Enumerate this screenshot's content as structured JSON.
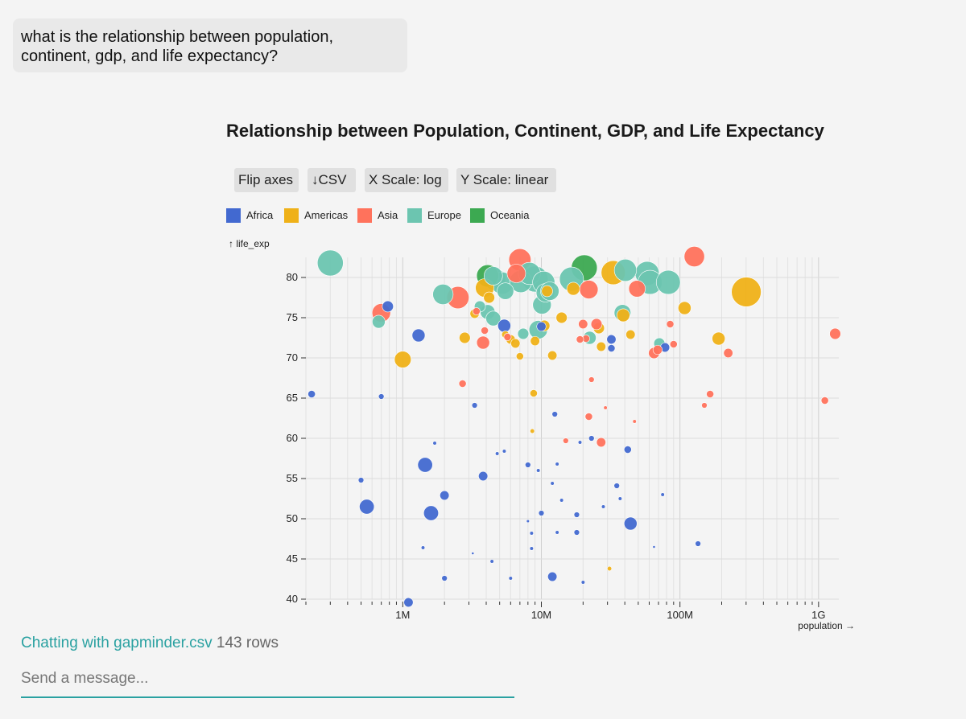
{
  "chat": {
    "user_message": "what is the relationship between population, continent, gdp, and life expectancy?"
  },
  "toolbar": {
    "flip_axes_label": "Flip axes",
    "csv_label": "↓CSV",
    "x_scale_label": "X Scale: log",
    "y_scale_label": "Y Scale: linear"
  },
  "footer": {
    "status_prefix": "Chatting with",
    "file_name": "gapminder.csv",
    "rows_label": "143 rows",
    "message_placeholder": "Send a message..."
  },
  "chart_data": {
    "type": "scatter",
    "title": "Relationship between Population, Continent, GDP, and Life Expectancy",
    "xlabel": "population →",
    "ylabel": "↑ life_exp",
    "x_scale": "log",
    "y_scale": "linear",
    "xlim": [
      200000,
      1400000000
    ],
    "ylim": [
      40,
      82.5
    ],
    "x_ticks": [
      1000000,
      10000000,
      100000000,
      1000000000
    ],
    "x_tick_labels": [
      "1M",
      "10M",
      "100M",
      "1G"
    ],
    "y_ticks": [
      40,
      45,
      50,
      55,
      60,
      65,
      70,
      75,
      80
    ],
    "y_tick_labels": [
      "40",
      "45",
      "50",
      "55",
      "60",
      "65",
      "70",
      "75",
      "80"
    ],
    "grid": true,
    "size_encoding": "gdp",
    "legend_position": "top-left",
    "series": [
      {
        "name": "Africa",
        "color": "#4269d0",
        "points": [
          [
            220000,
            65.5,
            2
          ],
          [
            700000,
            65.2,
            1.5
          ],
          [
            780000,
            76.4,
            3
          ],
          [
            1300000,
            72.8,
            3.5
          ],
          [
            1100000,
            39.6,
            2.5
          ],
          [
            500000,
            54.8,
            1.5
          ],
          [
            550000,
            51.5,
            4
          ],
          [
            1450000,
            56.7,
            4
          ],
          [
            1600000,
            50.7,
            4
          ],
          [
            2000000,
            52.9,
            2.5
          ],
          [
            1700000,
            59.4,
            1
          ],
          [
            1400000,
            46.4,
            1
          ],
          [
            2000000,
            42.6,
            1.5
          ],
          [
            3300000,
            64.1,
            1.5
          ],
          [
            3800000,
            55.3,
            2.5
          ],
          [
            4800000,
            58.1,
            1
          ],
          [
            5400000,
            58.4,
            1
          ],
          [
            4400000,
            44.7,
            1
          ],
          [
            6000000,
            42.6,
            1
          ],
          [
            8000000,
            56.7,
            1.5
          ],
          [
            9500000,
            56.0,
            1
          ],
          [
            12000000,
            54.4,
            1
          ],
          [
            12500000,
            63.0,
            1.5
          ],
          [
            13000000,
            56.8,
            1
          ],
          [
            14000000,
            52.3,
            1
          ],
          [
            10000000,
            50.7,
            1.5
          ],
          [
            8500000,
            48.2,
            1
          ],
          [
            8500000,
            46.3,
            1
          ],
          [
            8000000,
            49.7,
            0.8
          ],
          [
            13000000,
            48.3,
            1
          ],
          [
            12000000,
            42.8,
            2.5
          ],
          [
            18000000,
            50.5,
            1.5
          ],
          [
            18000000,
            48.3,
            1.5
          ],
          [
            19000000,
            59.5,
            1
          ],
          [
            20000000,
            42.1,
            1
          ],
          [
            23000000,
            60.0,
            1.5
          ],
          [
            28000000,
            51.5,
            1
          ],
          [
            32000000,
            72.3,
            2.5
          ],
          [
            32000000,
            71.2,
            2
          ],
          [
            35000000,
            54.1,
            1.5
          ],
          [
            37000000,
            52.5,
            1
          ],
          [
            42000000,
            58.6,
            2
          ],
          [
            44000000,
            49.4,
            3.5
          ],
          [
            65000000,
            46.5,
            0.7
          ],
          [
            75000000,
            53.0,
            1
          ],
          [
            78000000,
            71.3,
            2.5
          ],
          [
            135000000,
            46.9,
            1.5
          ],
          [
            3200000,
            45.7,
            0.7
          ],
          [
            5400000,
            74.0,
            3.5
          ],
          [
            10000000,
            73.9,
            2.5
          ]
        ]
      },
      {
        "name": "Americas",
        "color": "#efb118",
        "points": [
          [
            1000000,
            69.8,
            4.5
          ],
          [
            2800000,
            72.5,
            3
          ],
          [
            3300000,
            75.5,
            2.5
          ],
          [
            3900000,
            78.7,
            5
          ],
          [
            4200000,
            77.5,
            3
          ],
          [
            5500000,
            72.9,
            2
          ],
          [
            6000000,
            72.3,
            2.5
          ],
          [
            6500000,
            71.8,
            2.5
          ],
          [
            7000000,
            70.2,
            2
          ],
          [
            8600000,
            60.9,
            1.2
          ],
          [
            8800000,
            65.6,
            2
          ],
          [
            9000000,
            72.1,
            2.5
          ],
          [
            10500000,
            74.0,
            3
          ],
          [
            11000000,
            78.3,
            3
          ],
          [
            12000000,
            70.3,
            2.5
          ],
          [
            14000000,
            75.0,
            3
          ],
          [
            17000000,
            78.6,
            3.5
          ],
          [
            26000000,
            73.7,
            3
          ],
          [
            27000000,
            71.4,
            2.5
          ],
          [
            31000000,
            43.8,
            1.2
          ],
          [
            33000000,
            80.6,
            6.5
          ],
          [
            39000000,
            75.3,
            3.5
          ],
          [
            44000000,
            72.9,
            2.5
          ],
          [
            108000000,
            76.2,
            3.5
          ],
          [
            190000000,
            72.4,
            3.5
          ],
          [
            301000000,
            78.2,
            8
          ]
        ]
      },
      {
        "name": "Asia",
        "color": "#ff725c",
        "points": [
          [
            700000,
            75.6,
            5
          ],
          [
            2500000,
            77.5,
            6
          ],
          [
            2700000,
            66.8,
            2
          ],
          [
            3400000,
            75.8,
            2
          ],
          [
            3900000,
            73.4,
            2
          ],
          [
            3800000,
            71.9,
            3.5
          ],
          [
            5700000,
            72.6,
            2
          ],
          [
            7000000,
            82.2,
            6
          ],
          [
            6600000,
            80.5,
            5
          ],
          [
            15000000,
            59.7,
            1.5
          ],
          [
            21000000,
            72.4,
            2
          ],
          [
            22000000,
            62.7,
            2
          ],
          [
            22000000,
            78.5,
            5
          ],
          [
            23000000,
            67.3,
            1.5
          ],
          [
            25000000,
            74.2,
            3
          ],
          [
            27000000,
            59.5,
            2.5
          ],
          [
            29000000,
            63.8,
            1
          ],
          [
            47000000,
            62.1,
            1
          ],
          [
            49000000,
            78.6,
            4.5
          ],
          [
            65000000,
            70.6,
            3
          ],
          [
            69000000,
            71.0,
            2.5
          ],
          [
            85000000,
            74.2,
            2
          ],
          [
            90000000,
            71.7,
            2
          ],
          [
            127000000,
            82.6,
            5.5
          ],
          [
            150000000,
            64.1,
            1.5
          ],
          [
            165000000,
            65.5,
            2
          ],
          [
            223000000,
            70.6,
            2.5
          ],
          [
            1110000000,
            64.7,
            2
          ],
          [
            1318000000,
            73.0,
            3
          ],
          [
            20000000,
            74.2,
            2.5
          ],
          [
            19000000,
            72.3,
            2
          ]
        ]
      },
      {
        "name": "Europe",
        "color": "#6cc5b0",
        "points": [
          [
            300000,
            81.8,
            7
          ],
          [
            670000,
            74.5,
            3.5
          ],
          [
            1950000,
            77.9,
            5.5
          ],
          [
            3600000,
            76.4,
            3
          ],
          [
            4100000,
            75.7,
            4
          ],
          [
            4500000,
            74.9,
            4
          ],
          [
            4600000,
            79.8,
            6
          ],
          [
            4500000,
            80.2,
            5
          ],
          [
            5200000,
            79.3,
            6
          ],
          [
            5500000,
            78.3,
            4.5
          ],
          [
            7100000,
            79.5,
            6
          ],
          [
            7400000,
            73.0,
            3
          ],
          [
            8200000,
            80.5,
            6
          ],
          [
            9000000,
            79.8,
            7
          ],
          [
            9500000,
            73.5,
            5
          ],
          [
            10100000,
            76.6,
            5
          ],
          [
            10400000,
            79.4,
            6
          ],
          [
            10700000,
            78.1,
            5
          ],
          [
            16500000,
            79.8,
            6.5
          ],
          [
            22300000,
            72.5,
            3.5
          ],
          [
            38500000,
            75.6,
            4.5
          ],
          [
            40400000,
            80.9,
            6
          ],
          [
            58000000,
            80.5,
            6.5
          ],
          [
            60800000,
            79.4,
            6.5
          ],
          [
            71000000,
            71.8,
            3
          ],
          [
            82400000,
            79.4,
            6.5
          ],
          [
            11500000,
            78.3,
            5
          ]
        ]
      },
      {
        "name": "Oceania",
        "color": "#3ca951",
        "points": [
          [
            4100000,
            80.2,
            6
          ],
          [
            20400000,
            81.2,
            7
          ]
        ]
      }
    ]
  }
}
